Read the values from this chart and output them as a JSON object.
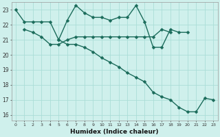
{
  "xlabel": "Humidex (Indice chaleur)",
  "x": [
    0,
    1,
    2,
    3,
    4,
    5,
    6,
    7,
    8,
    9,
    10,
    11,
    12,
    13,
    14,
    15,
    16,
    17,
    18,
    19,
    20,
    21,
    22,
    23
  ],
  "series1": [
    23.0,
    22.2,
    22.2,
    22.2,
    22.2,
    21.0,
    22.3,
    23.3,
    22.8,
    22.5,
    22.5,
    22.3,
    22.5,
    22.5,
    23.3,
    22.2,
    20.5,
    20.5,
    21.7,
    21.5,
    21.5,
    null,
    null,
    null
  ],
  "series2": [
    null,
    21.7,
    21.5,
    21.2,
    20.7,
    20.7,
    21.0,
    21.2,
    21.2,
    21.2,
    21.2,
    21.2,
    21.2,
    21.2,
    21.2,
    21.2,
    21.2,
    21.7,
    21.5,
    null,
    null,
    null,
    null,
    null
  ],
  "series3": [
    null,
    null,
    null,
    null,
    null,
    21.0,
    20.7,
    20.7,
    20.5,
    20.2,
    19.8,
    19.5,
    19.2,
    18.8,
    18.5,
    18.2,
    17.5,
    17.2,
    17.0,
    16.5,
    16.2,
    16.2,
    17.1,
    17.0
  ],
  "yticks": [
    16,
    17,
    18,
    19,
    20,
    21,
    22,
    23
  ],
  "xticks": [
    0,
    1,
    2,
    3,
    4,
    5,
    6,
    7,
    8,
    9,
    10,
    11,
    12,
    13,
    14,
    15,
    16,
    17,
    18,
    19,
    20,
    21,
    22,
    23
  ],
  "line_color": "#1a6b5a",
  "bg_color": "#cff0ec",
  "grid_color": "#aaddd7",
  "markersize": 2.5,
  "linewidth": 1.0
}
